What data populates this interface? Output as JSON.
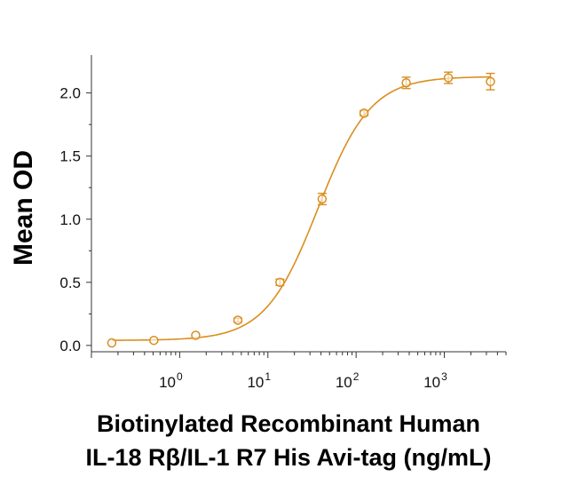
{
  "chart_data": {
    "type": "scatter",
    "title": "",
    "xlabel": [
      "Biotinylated Recombinant Human",
      "IL-18 Rβ/IL-1 R7 His Avi-tag (ng/mL)"
    ],
    "ylabel": "Mean OD",
    "x_scale": "log",
    "xlim": [
      0.1,
      5000
    ],
    "ylim": [
      -0.05,
      2.3
    ],
    "x_ticks": [
      {
        "base": "10",
        "exp": "0"
      },
      {
        "base": "10",
        "exp": "1"
      },
      {
        "base": "10",
        "exp": "2"
      },
      {
        "base": "10",
        "exp": "3"
      }
    ],
    "y_ticks": [
      "0.0",
      "0.5",
      "1.0",
      "1.5",
      "2.0"
    ],
    "color": "#D98E1E",
    "series": [
      {
        "name": "Mean OD",
        "x": [
          0.17,
          0.51,
          1.52,
          4.57,
          13.7,
          41.2,
          123,
          370,
          1111,
          3333
        ],
        "y": [
          0.02,
          0.04,
          0.08,
          0.2,
          0.5,
          1.16,
          1.84,
          2.08,
          2.12,
          2.09
        ],
        "yerr": [
          0.01,
          0.01,
          0.01,
          0.015,
          0.025,
          0.045,
          0.02,
          0.045,
          0.045,
          0.065
        ]
      }
    ],
    "fit": {
      "bottom": 0.04,
      "top": 2.13,
      "ec50": 37,
      "hill": 1.45
    }
  }
}
